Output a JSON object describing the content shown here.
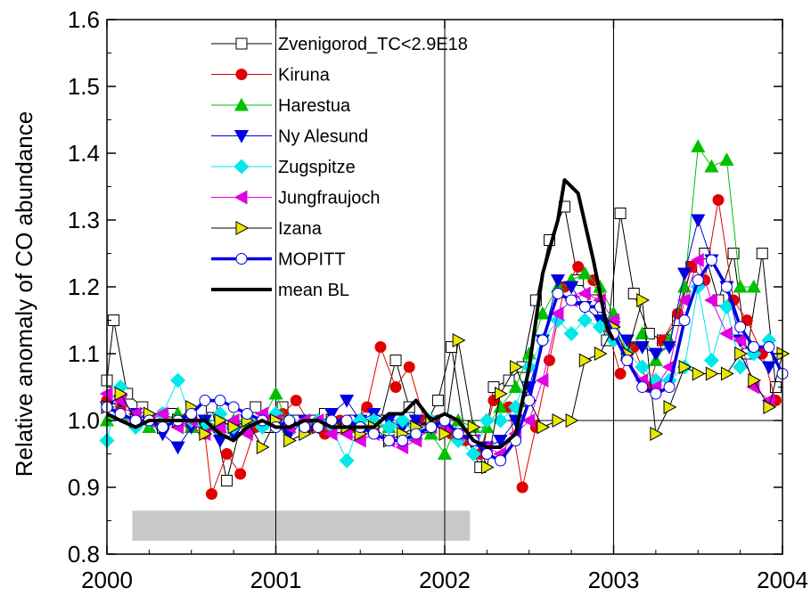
{
  "chart_data": {
    "type": "line",
    "title": "",
    "xlabel": "",
    "ylabel": "Relative anomaly of CO abundance",
    "xlim": [
      2000,
      2004
    ],
    "ylim": [
      0.8,
      1.6
    ],
    "x_ticks": [
      2000,
      2001,
      2002,
      2003,
      2004
    ],
    "x_tick_labels": [
      "2000",
      "2001",
      "2002",
      "2003",
      "2004"
    ],
    "y_ticks": [
      0.8,
      0.9,
      1.0,
      1.1,
      1.2,
      1.3,
      1.4,
      1.5,
      1.6
    ],
    "y_tick_labels": [
      "0.8",
      "0.9",
      "1.0",
      "1.1",
      "1.2",
      "1.3",
      "1.4",
      "1.5",
      "1.6"
    ],
    "vertical_lines": [
      2001,
      2002,
      2003
    ],
    "reference_line": 1.0,
    "shaded_band": {
      "x": [
        2000.15,
        2002.15
      ],
      "y": [
        0.82,
        0.865
      ],
      "color": "#c8c8c8"
    },
    "legend_position": "top-center",
    "series": [
      {
        "name": "Zvenigorod_TC<2.9E18",
        "color": "#000000",
        "marker": "square",
        "filled": false,
        "line_width": 1,
        "x": [
          2000.0,
          2000.04,
          2000.12,
          2000.21,
          2000.29,
          2000.38,
          2000.46,
          2000.54,
          2000.62,
          2000.71,
          2000.79,
          2000.88,
          2000.96,
          2001.04,
          2001.12,
          2001.21,
          2001.29,
          2001.38,
          2001.46,
          2001.54,
          2001.62,
          2001.71,
          2001.79,
          2001.88,
          2001.96,
          2002.04,
          2002.12,
          2002.21,
          2002.29,
          2002.38,
          2002.46,
          2002.54,
          2002.62,
          2002.71,
          2002.79,
          2002.88,
          2002.96,
          2003.04,
          2003.12,
          2003.21,
          2003.29,
          2003.38,
          2003.46,
          2003.54,
          2003.62,
          2003.71,
          2003.79,
          2003.88,
          2003.96
        ],
        "y": [
          1.06,
          1.15,
          1.04,
          1.02,
          1.0,
          1.01,
          1.0,
          0.99,
          1.02,
          0.91,
          0.99,
          1.02,
          0.99,
          1.02,
          1.0,
          1.0,
          1.01,
          0.99,
          1.0,
          1.01,
          1.0,
          1.09,
          1.02,
          0.99,
          1.03,
          1.11,
          0.98,
          0.93,
          1.05,
          1.06,
          1.08,
          1.18,
          1.27,
          1.32,
          1.21,
          1.18,
          1.12,
          1.31,
          1.19,
          1.13,
          1.12,
          1.15,
          1.23,
          1.25,
          1.18,
          1.25,
          1.1,
          1.25,
          1.05
        ]
      },
      {
        "name": "Kiruna",
        "color": "#e00000",
        "marker": "circle",
        "filled": true,
        "line_width": 1,
        "x": [
          2000.0,
          2000.08,
          2000.17,
          2000.25,
          2000.33,
          2000.42,
          2000.5,
          2000.58,
          2000.62,
          2000.71,
          2000.79,
          2000.88,
          2000.96,
          2001.04,
          2001.12,
          2001.21,
          2001.29,
          2001.38,
          2001.46,
          2001.54,
          2001.62,
          2001.71,
          2001.79,
          2001.88,
          2001.96,
          2002.04,
          2002.12,
          2002.21,
          2002.29,
          2002.38,
          2002.46,
          2002.54,
          2002.62,
          2002.71,
          2002.79,
          2002.88,
          2002.96,
          2003.04,
          2003.12,
          2003.21,
          2003.29,
          2003.38,
          2003.46,
          2003.54,
          2003.62,
          2003.71,
          2003.79,
          2003.88,
          2003.96
        ],
        "y": [
          1.03,
          1.02,
          1.01,
          1.0,
          1.01,
          1.0,
          0.99,
          0.98,
          0.89,
          0.95,
          0.92,
          0.99,
          1.0,
          1.01,
          1.03,
          0.99,
          0.98,
          1.0,
          0.99,
          1.02,
          1.11,
          1.05,
          1.08,
          1.0,
          1.0,
          0.98,
          0.97,
          0.95,
          1.03,
          1.02,
          0.9,
          0.99,
          1.09,
          1.2,
          1.23,
          1.21,
          1.14,
          1.07,
          1.11,
          1.05,
          1.12,
          1.16,
          1.23,
          1.21,
          1.33,
          1.18,
          1.15,
          1.1,
          1.03
        ]
      },
      {
        "name": "Harestua",
        "color": "#00c000",
        "marker": "triangle-up",
        "filled": true,
        "line_width": 1,
        "x": [
          2000.0,
          2000.08,
          2000.17,
          2000.25,
          2000.33,
          2000.42,
          2000.5,
          2000.58,
          2000.67,
          2000.75,
          2000.83,
          2000.92,
          2001.0,
          2001.08,
          2001.17,
          2001.25,
          2001.33,
          2001.42,
          2001.5,
          2001.58,
          2001.67,
          2001.75,
          2001.83,
          2001.92,
          2002.0,
          2002.08,
          2002.17,
          2002.25,
          2002.33,
          2002.42,
          2002.5,
          2002.58,
          2002.67,
          2002.75,
          2002.83,
          2002.92,
          2003.0,
          2003.08,
          2003.17,
          2003.25,
          2003.33,
          2003.42,
          2003.5,
          2003.58,
          2003.67,
          2003.75,
          2003.83
        ],
        "y": [
          1.0,
          1.01,
          1.0,
          0.99,
          1.0,
          1.01,
          0.99,
          1.0,
          0.99,
          1.0,
          0.99,
          1.0,
          1.04,
          0.99,
          1.0,
          1.0,
          1.0,
          0.99,
          1.0,
          1.0,
          0.99,
          1.0,
          0.98,
          0.98,
          0.95,
          1.0,
          0.99,
          0.99,
          1.02,
          1.05,
          1.1,
          1.16,
          1.2,
          1.21,
          1.22,
          1.2,
          1.16,
          1.1,
          1.13,
          1.09,
          1.12,
          1.2,
          1.41,
          1.38,
          1.39,
          1.2,
          1.2
        ]
      },
      {
        "name": "Ny Alesund",
        "color": "#0000e0",
        "marker": "triangle-down",
        "filled": true,
        "line_width": 1,
        "x": [
          2000.0,
          2000.08,
          2000.17,
          2000.25,
          2000.33,
          2000.42,
          2000.5,
          2000.58,
          2000.67,
          2000.75,
          2000.83,
          2000.92,
          2001.0,
          2001.08,
          2001.17,
          2001.25,
          2001.33,
          2001.42,
          2001.5,
          2001.58,
          2001.67,
          2001.75,
          2001.83,
          2001.92,
          2002.0,
          2002.08,
          2002.17,
          2002.25,
          2002.33,
          2002.42,
          2002.5,
          2002.58,
          2002.67,
          2002.75,
          2002.83,
          2002.92,
          2003.0,
          2003.08,
          2003.17,
          2003.25,
          2003.33,
          2003.42,
          2003.5,
          2003.58,
          2003.67,
          2003.75,
          2003.83,
          2003.92
        ],
        "y": [
          1.02,
          1.03,
          1.01,
          1.0,
          0.98,
          0.96,
          0.99,
          1.0,
          0.97,
          0.98,
          1.0,
          0.99,
          1.0,
          0.98,
          1.0,
          0.99,
          1.01,
          1.03,
          1.0,
          1.01,
          1.0,
          0.99,
          1.0,
          0.99,
          1.0,
          0.98,
          0.97,
          0.96,
          0.97,
          1.0,
          1.05,
          1.12,
          1.21,
          1.2,
          1.17,
          1.15,
          1.14,
          1.12,
          1.11,
          1.1,
          1.11,
          1.22,
          1.3,
          1.24,
          1.2,
          1.12,
          1.1,
          1.08
        ]
      },
      {
        "name": "Zugspitze",
        "color": "#00e8e8",
        "marker": "diamond",
        "filled": true,
        "line_width": 1,
        "x": [
          2000.0,
          2000.08,
          2000.17,
          2000.25,
          2000.33,
          2000.42,
          2000.5,
          2000.58,
          2000.67,
          2000.75,
          2000.83,
          2000.92,
          2001.0,
          2001.08,
          2001.17,
          2001.25,
          2001.33,
          2001.42,
          2001.5,
          2001.58,
          2001.67,
          2001.75,
          2001.83,
          2001.92,
          2002.0,
          2002.08,
          2002.17,
          2002.25,
          2002.33,
          2002.42,
          2002.5,
          2002.58,
          2002.67,
          2002.75,
          2002.83,
          2002.92,
          2003.0,
          2003.08,
          2003.17,
          2003.25,
          2003.33,
          2003.42,
          2003.5,
          2003.58,
          2003.67,
          2003.75,
          2003.83,
          2003.92
        ],
        "y": [
          0.97,
          1.05,
          0.99,
          1.0,
          1.01,
          1.06,
          1.0,
          0.99,
          1.01,
          0.99,
          1.0,
          0.99,
          1.01,
          1.0,
          0.99,
          1.0,
          0.99,
          0.94,
          1.0,
          1.0,
          0.99,
          1.0,
          0.98,
          1.0,
          0.99,
          0.97,
          0.95,
          1.0,
          1.0,
          1.02,
          1.08,
          1.12,
          1.15,
          1.13,
          1.15,
          1.14,
          1.12,
          1.1,
          1.08,
          1.06,
          1.06,
          1.08,
          1.2,
          1.09,
          1.17,
          1.08,
          1.1,
          1.12
        ]
      },
      {
        "name": "Jungfraujoch",
        "color": "#e000e0",
        "marker": "triangle-left",
        "filled": true,
        "line_width": 1,
        "x": [
          2000.0,
          2000.08,
          2000.17,
          2000.25,
          2000.33,
          2000.42,
          2000.5,
          2000.58,
          2000.67,
          2000.75,
          2000.83,
          2000.92,
          2001.0,
          2001.08,
          2001.17,
          2001.25,
          2001.33,
          2001.42,
          2001.5,
          2001.58,
          2001.67,
          2001.75,
          2001.83,
          2001.92,
          2002.0,
          2002.08,
          2002.17,
          2002.25,
          2002.33,
          2002.42,
          2002.5,
          2002.58,
          2002.67,
          2002.75,
          2002.83,
          2002.92,
          2003.0,
          2003.08,
          2003.17,
          2003.25,
          2003.33,
          2003.42,
          2003.5,
          2003.58,
          2003.67,
          2003.75,
          2003.83,
          2003.92
        ],
        "y": [
          1.04,
          1.03,
          1.01,
          1.0,
          1.01,
          0.99,
          1.0,
          0.98,
          0.99,
          1.0,
          0.98,
          1.01,
          1.0,
          0.99,
          1.0,
          1.0,
          0.98,
          0.98,
          0.97,
          0.98,
          0.97,
          0.96,
          0.97,
          0.99,
          0.99,
          0.98,
          0.97,
          0.96,
          0.95,
          0.98,
          1.0,
          1.06,
          1.16,
          1.18,
          1.19,
          1.18,
          1.15,
          1.09,
          1.06,
          1.05,
          1.08,
          1.18,
          1.24,
          1.18,
          1.13,
          1.12,
          1.05,
          1.03
        ]
      },
      {
        "name": "Izana",
        "color": "#000000",
        "fill": "#e8e800",
        "marker": "triangle-right",
        "filled": true,
        "line_width": 1,
        "x": [
          2000.0,
          2000.08,
          2000.17,
          2000.25,
          2000.33,
          2000.42,
          2000.5,
          2000.58,
          2000.67,
          2000.75,
          2000.83,
          2000.92,
          2001.0,
          2001.08,
          2001.17,
          2001.25,
          2001.33,
          2001.42,
          2001.5,
          2001.58,
          2001.67,
          2001.75,
          2001.83,
          2001.92,
          2002.0,
          2002.08,
          2002.17,
          2002.25,
          2002.33,
          2002.42,
          2002.5,
          2002.58,
          2002.67,
          2002.75,
          2002.83,
          2002.92,
          2003.0,
          2003.08,
          2003.17,
          2003.25,
          2003.33,
          2003.42,
          2003.5,
          2003.58,
          2003.67,
          2003.75,
          2003.83,
          2003.92,
          2004.0
        ],
        "y": [
          1.02,
          1.04,
          1.0,
          1.01,
          0.99,
          1.0,
          1.02,
          0.98,
          1.0,
          0.99,
          1.0,
          0.96,
          1.0,
          0.97,
          0.98,
          0.99,
          1.0,
          0.99,
          0.98,
          0.99,
          0.97,
          0.98,
          0.99,
          1.0,
          0.98,
          1.12,
          0.99,
          0.93,
          1.04,
          1.08,
          1.03,
          0.99,
          1.0,
          1.0,
          1.09,
          1.1,
          1.14,
          1.1,
          1.18,
          0.98,
          1.02,
          1.08,
          1.07,
          1.07,
          1.07,
          1.1,
          1.06,
          1.02,
          1.1
        ]
      },
      {
        "name": "MOPITT",
        "color": "#0000e0",
        "fill": "#ffffff",
        "marker": "circle",
        "filled": true,
        "line_width": 3.5,
        "x": [
          2000.0,
          2000.08,
          2000.17,
          2000.25,
          2000.33,
          2000.42,
          2000.5,
          2000.58,
          2000.67,
          2000.75,
          2000.83,
          2000.92,
          2001.0,
          2001.08,
          2001.17,
          2001.25,
          2001.33,
          2001.42,
          2001.5,
          2001.58,
          2001.67,
          2001.75,
          2001.83,
          2001.92,
          2002.0,
          2002.08,
          2002.17,
          2002.25,
          2002.33,
          2002.42,
          2002.5,
          2002.58,
          2002.67,
          2002.75,
          2002.83,
          2002.92,
          2003.0,
          2003.08,
          2003.17,
          2003.25,
          2003.33,
          2003.42,
          2003.5,
          2003.58,
          2003.67,
          2003.75,
          2003.83,
          2003.92,
          2004.0
        ],
        "y": [
          1.02,
          1.01,
          1.0,
          1.0,
          0.99,
          1.0,
          1.01,
          1.03,
          1.03,
          1.02,
          1.01,
          1.0,
          0.99,
          1.0,
          0.99,
          0.99,
          1.0,
          1.0,
          0.99,
          0.98,
          0.97,
          0.97,
          0.98,
          0.99,
          1.0,
          0.98,
          0.97,
          0.95,
          0.94,
          0.97,
          1.03,
          1.12,
          1.19,
          1.18,
          1.17,
          1.17,
          1.13,
          1.09,
          1.05,
          1.04,
          1.05,
          1.15,
          1.21,
          1.24,
          1.2,
          1.14,
          1.11,
          1.11,
          1.07
        ]
      },
      {
        "name": "mean BL",
        "color": "#000000",
        "marker": "none",
        "filled": false,
        "line_width": 4,
        "x": [
          2000.0,
          2000.08,
          2000.17,
          2000.25,
          2000.33,
          2000.42,
          2000.5,
          2000.58,
          2000.67,
          2000.75,
          2000.83,
          2000.92,
          2001.0,
          2001.08,
          2001.17,
          2001.25,
          2001.33,
          2001.42,
          2001.5,
          2001.58,
          2001.67,
          2001.75,
          2001.83,
          2001.92,
          2002.0,
          2002.08,
          2002.17,
          2002.25,
          2002.33,
          2002.42,
          2002.5,
          2002.58,
          2002.67,
          2002.71,
          2002.79,
          2002.88,
          2002.96,
          2003.0
        ],
        "y": [
          1.01,
          1.0,
          0.99,
          1.0,
          1.0,
          1.0,
          1.0,
          1.0,
          0.98,
          0.97,
          0.99,
          1.0,
          0.99,
          0.99,
          1.0,
          1.0,
          0.99,
          0.99,
          0.99,
          0.99,
          1.01,
          1.01,
          1.03,
          1.0,
          1.01,
          1.0,
          0.97,
          0.96,
          0.96,
          0.98,
          1.08,
          1.22,
          1.3,
          1.36,
          1.34,
          1.24,
          1.14,
          1.12
        ]
      }
    ]
  }
}
